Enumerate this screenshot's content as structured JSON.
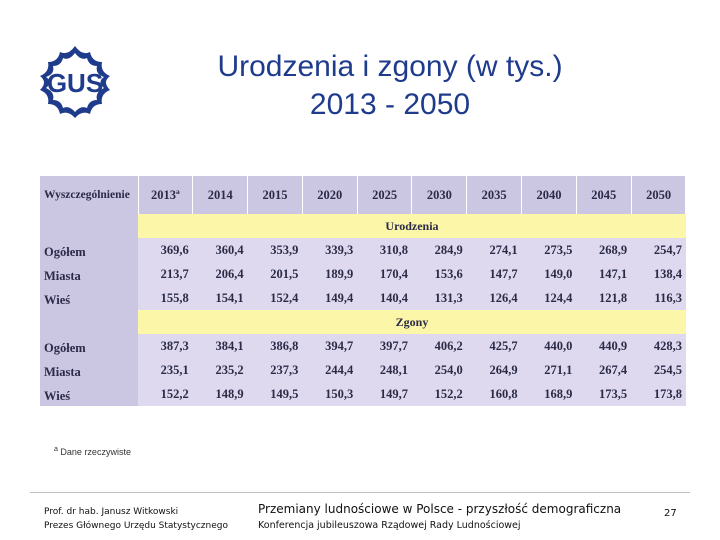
{
  "logo": {
    "text": "GUS",
    "color": "#1f3b8c"
  },
  "title": {
    "line1": "Urodzenia i zgony (w tys.)",
    "line2": "2013 - 2050"
  },
  "table": {
    "header_label": "Wyszczególnienie",
    "years": [
      "2013ª",
      "2014",
      "2015",
      "2020",
      "2025",
      "2030",
      "2035",
      "2040",
      "2045",
      "2050"
    ],
    "sections": [
      {
        "title": "Urodzenia",
        "rows": [
          {
            "label": "Ogółem",
            "values": [
              "369,6",
              "360,4",
              "353,9",
              "339,3",
              "310,8",
              "284,9",
              "274,1",
              "273,5",
              "268,9",
              "254,7"
            ]
          },
          {
            "label": "Miasta",
            "values": [
              "213,7",
              "206,4",
              "201,5",
              "189,9",
              "170,4",
              "153,6",
              "147,7",
              "149,0",
              "147,1",
              "138,4"
            ]
          },
          {
            "label": "Wieś",
            "values": [
              "155,8",
              "154,1",
              "152,4",
              "149,4",
              "140,4",
              "131,3",
              "126,4",
              "124,4",
              "121,8",
              "116,3"
            ]
          }
        ]
      },
      {
        "title": "Zgony",
        "rows": [
          {
            "label": "Ogółem",
            "values": [
              "387,3",
              "384,1",
              "386,8",
              "394,7",
              "397,7",
              "406,2",
              "425,7",
              "440,0",
              "440,9",
              "428,3"
            ]
          },
          {
            "label": "Miasta",
            "values": [
              "235,1",
              "235,2",
              "237,3",
              "244,4",
              "248,1",
              "254,0",
              "264,9",
              "271,1",
              "267,4",
              "254,5"
            ]
          },
          {
            "label": "Wieś",
            "values": [
              "152,2",
              "148,9",
              "149,5",
              "150,3",
              "149,7",
              "152,2",
              "160,8",
              "168,9",
              "173,5",
              "173,8"
            ]
          }
        ]
      }
    ]
  },
  "footnote": {
    "marker": "a",
    "text": "Dane rzeczywiste"
  },
  "footer": {
    "author": "Prof. dr hab. Janusz Witkowski",
    "author_role": "Prezes Głównego Urzędu Statystycznego",
    "talk_title": "Przemiany ludnościowe w Polsce - przyszłość demograficzna",
    "conference": "Konferencja jubileuszowa Rządowej Rady Ludnościowej",
    "page": "27"
  }
}
